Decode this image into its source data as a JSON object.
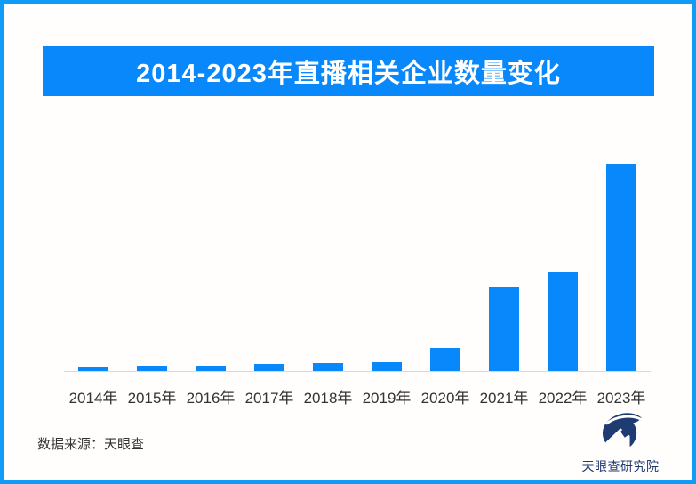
{
  "header": {
    "title": "2014-2023年直播相关企业数量变化",
    "banner_color": "#0888fa",
    "title_text_color": "#ffffff"
  },
  "chart_data": {
    "type": "bar",
    "title": "2014-2023年直播相关企业数量变化",
    "categories": [
      "2014年",
      "2015年",
      "2016年",
      "2017年",
      "2018年",
      "2019年",
      "2020年",
      "2021年",
      "2022年",
      "2023年"
    ],
    "values": [
      4.5,
      6,
      6.5,
      8,
      9,
      10.5,
      26.5,
      94,
      111,
      233
    ],
    "value_note": "No numeric y-axis or data labels are shown in the image; values are measured bar heights in pixels, proportional to enterprise counts",
    "xlabel": "",
    "ylabel": "",
    "bar_color": "#0888fa",
    "axis_line_color": "#d9d9d9",
    "axis_label_color": "#333333",
    "grid": false,
    "legend": false
  },
  "footer": {
    "source": "数据来源：天眼查",
    "logo_text": "天眼查研究院",
    "logo_icon": "tianyancha-bird-icon",
    "logo_color": "#1e3b72"
  },
  "frame": {
    "border_color": "#0f9cf7",
    "background": "#fffefd"
  }
}
